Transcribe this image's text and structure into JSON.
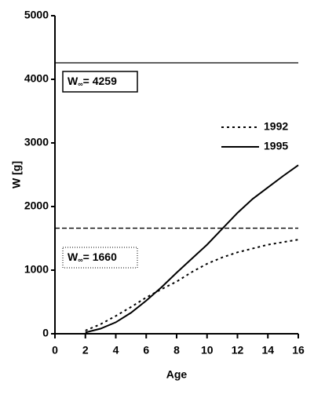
{
  "chart_data": {
    "type": "line",
    "xlabel": "Age",
    "ylabel": "W [g]",
    "x": [
      2,
      3,
      4,
      5,
      6,
      7,
      8,
      9,
      10,
      11,
      12,
      13,
      14,
      15,
      16
    ],
    "series": [
      {
        "name": "1992",
        "color": "#000000",
        "dash": "dotted",
        "values": [
          50,
          150,
          280,
          420,
          570,
          700,
          820,
          970,
          1100,
          1200,
          1280,
          1340,
          1400,
          1440,
          1480
        ]
      },
      {
        "name": "1995",
        "color": "#000000",
        "dash": "solid",
        "values": [
          20,
          80,
          180,
          330,
          520,
          730,
          960,
          1180,
          1400,
          1650,
          1900,
          2120,
          2300,
          2480,
          2650
        ]
      }
    ],
    "hlines": [
      {
        "symbol": "W",
        "subscript": "∞",
        "text": "= 4259",
        "y": 4259,
        "dash": "solid"
      },
      {
        "symbol": "W",
        "subscript": "∞",
        "text": "= 1660",
        "y": 1660,
        "dash": "dashed"
      }
    ],
    "xlim": [
      0,
      16
    ],
    "xticks": [
      0,
      2,
      4,
      6,
      8,
      10,
      12,
      14,
      16
    ],
    "ylim": [
      0,
      5000
    ],
    "yticks": [
      0,
      1000,
      2000,
      3000,
      4000,
      5000
    ],
    "grid": false
  }
}
